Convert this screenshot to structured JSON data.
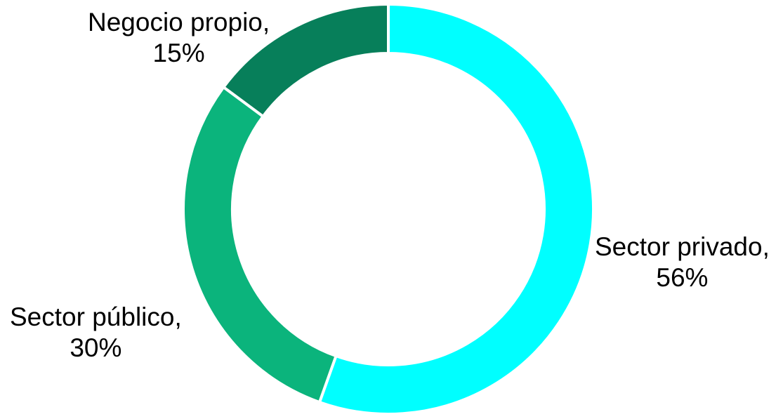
{
  "chart_data": {
    "type": "pie",
    "variant": "donut",
    "title": "",
    "categories": [
      "Sector privado",
      "Sector público",
      "Negocio propio"
    ],
    "values": [
      56,
      30,
      15
    ],
    "value_labels": [
      "56%",
      "30%",
      "15%"
    ],
    "colors": [
      "#00FFFF",
      "#0BB47C",
      "#077F5A"
    ],
    "legend": "none",
    "labels": [
      {
        "category": "Sector privado",
        "text_line1": "Sector privado,",
        "text_line2": "56%"
      },
      {
        "category": "Sector público",
        "text_line1": "Sector público,",
        "text_line2": "30%"
      },
      {
        "category": "Negocio propio",
        "text_line1": "Negocio propio,",
        "text_line2": "15%"
      }
    ]
  }
}
